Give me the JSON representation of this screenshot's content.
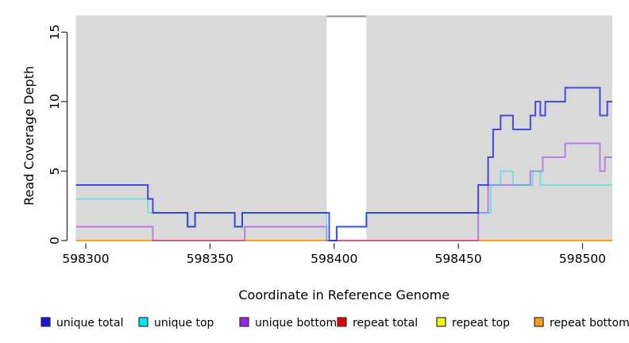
{
  "chart_data": {
    "type": "line",
    "line_style": "step",
    "title": "",
    "xlabel": "Coordinate in Reference Genome",
    "ylabel": "Read Coverage Depth",
    "xlim": [
      598296,
      598512
    ],
    "ylim": [
      0,
      16.2
    ],
    "x_ticks": [
      598300,
      598350,
      598400,
      598450,
      598500
    ],
    "y_ticks": [
      0,
      5,
      10,
      15
    ],
    "grid": false,
    "plot_background": "#d9d9d9",
    "axis_color": "#262626",
    "highlight_band": {
      "x_start": 598397,
      "x_end": 598413,
      "color": "#ffffff",
      "top_border_color": "#8c8c8c"
    },
    "series": [
      {
        "name": "repeat total",
        "color": "#e60000",
        "opacity": 1,
        "steps": [
          [
            598296,
            0
          ]
        ]
      },
      {
        "name": "repeat top",
        "color": "#f5f500",
        "opacity": 1,
        "steps": [
          [
            598296,
            0
          ]
        ]
      },
      {
        "name": "repeat bottom",
        "color": "#ff9d1e",
        "opacity": 1,
        "steps": [
          [
            598296,
            0
          ]
        ]
      },
      {
        "name": "unique bottom",
        "color": "#a020f0",
        "opacity": 0.5,
        "steps": [
          [
            598296,
            1
          ],
          [
            598327,
            0
          ],
          [
            598364,
            1
          ],
          [
            598397,
            0
          ],
          [
            598458,
            2
          ],
          [
            598462,
            4
          ],
          [
            598479,
            5
          ],
          [
            598484,
            6
          ],
          [
            598493,
            7
          ],
          [
            598507,
            5
          ],
          [
            598509,
            6
          ]
        ]
      },
      {
        "name": "unique top",
        "color": "#00e0f0",
        "opacity": 0.45,
        "steps": [
          [
            598296,
            3
          ],
          [
            598325,
            2
          ],
          [
            598341,
            1
          ],
          [
            598344,
            2
          ],
          [
            598360,
            1
          ],
          [
            598363,
            2
          ],
          [
            598397,
            0
          ],
          [
            598401,
            1
          ],
          [
            598413,
            2
          ],
          [
            598463,
            4
          ],
          [
            598467,
            5
          ],
          [
            598472,
            4
          ],
          [
            598480,
            5
          ],
          [
            598483,
            4
          ]
        ]
      },
      {
        "name": "unique total",
        "color": "#0f0fe8",
        "opacity": 0.72,
        "steps": [
          [
            598296,
            4
          ],
          [
            598325,
            3
          ],
          [
            598327,
            2
          ],
          [
            598341,
            1
          ],
          [
            598344,
            2
          ],
          [
            598360,
            1
          ],
          [
            598363,
            2
          ],
          [
            598398,
            0
          ],
          [
            598401,
            1
          ],
          [
            598413,
            2
          ],
          [
            598458,
            4
          ],
          [
            598462,
            6
          ],
          [
            598464,
            8
          ],
          [
            598467,
            9
          ],
          [
            598472,
            8
          ],
          [
            598479,
            9
          ],
          [
            598481,
            10
          ],
          [
            598483,
            9
          ],
          [
            598485,
            10
          ],
          [
            598493,
            11
          ],
          [
            598507,
            9
          ],
          [
            598510,
            10
          ]
        ]
      }
    ],
    "legend_position": "bottom"
  },
  "legend": {
    "items": [
      {
        "label": "unique total",
        "color": "#1414e6"
      },
      {
        "label": "unique top",
        "color": "#00e6f2"
      },
      {
        "label": "unique bottom",
        "color": "#a020f0"
      },
      {
        "label": "repeat total",
        "color": "#e60000"
      },
      {
        "label": "repeat top",
        "color": "#f5f500"
      },
      {
        "label": "repeat bottom",
        "color": "#ff9d1e"
      }
    ]
  }
}
